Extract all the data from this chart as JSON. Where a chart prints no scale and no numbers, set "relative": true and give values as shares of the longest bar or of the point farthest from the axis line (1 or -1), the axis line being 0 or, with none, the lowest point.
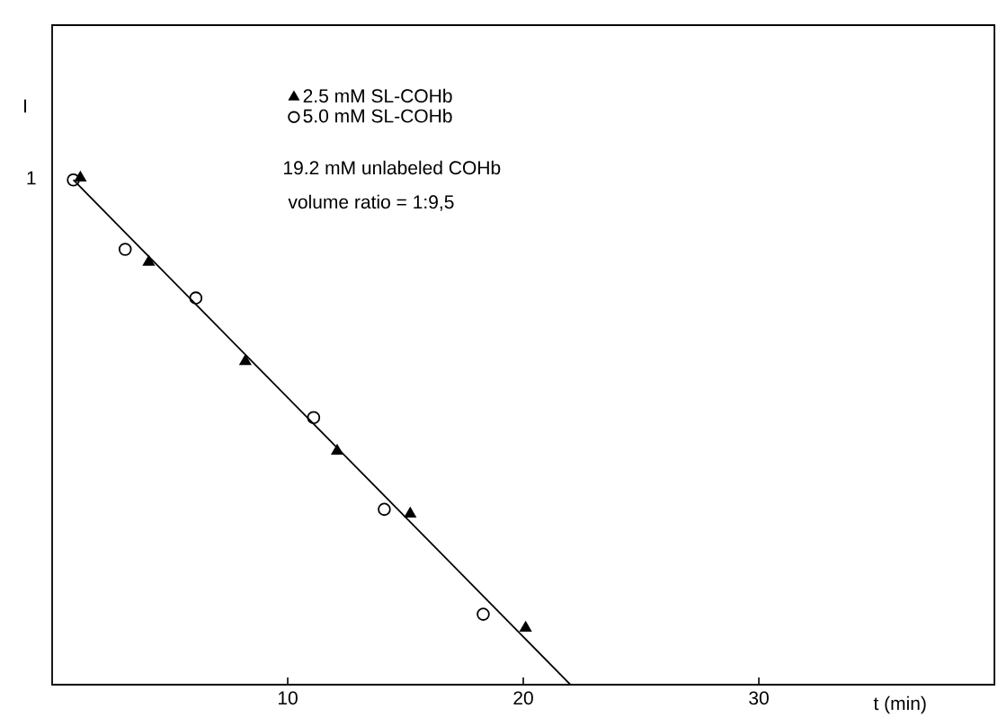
{
  "chart_data": {
    "type": "scatter",
    "xlabel": "t (min)",
    "ylabel": "I",
    "relative": true,
    "xlim": [
      0,
      40
    ],
    "xticks": [
      10,
      20,
      30
    ],
    "legend": "top",
    "grid": false,
    "annotations": [
      "19.2 mM unlabeled COHb",
      "volume ratio = 1:9,5",
      "1"
    ],
    "series": [
      {
        "name": "2.5 mM SL-COHb",
        "marker": "triangle",
        "color": "#000000",
        "x": [
          1.2,
          4.1,
          8.2,
          12.1,
          15.2,
          20.1
        ],
        "values": [
          1.0,
          0.834,
          0.638,
          0.461,
          0.337,
          0.112
        ]
      },
      {
        "name": "5.0 mM SL-COHb",
        "marker": "circle",
        "color": "#000000",
        "x": [
          0.9,
          3.1,
          6.1,
          11.1,
          14.1,
          18.3
        ],
        "values": [
          0.996,
          0.859,
          0.763,
          0.527,
          0.346,
          0.139
        ]
      },
      {
        "type": "line",
        "color": "#000000",
        "line_style": "solid",
        "x": [
          0.9,
          22.0
        ],
        "values": [
          0.996,
          0.0
        ]
      }
    ]
  }
}
